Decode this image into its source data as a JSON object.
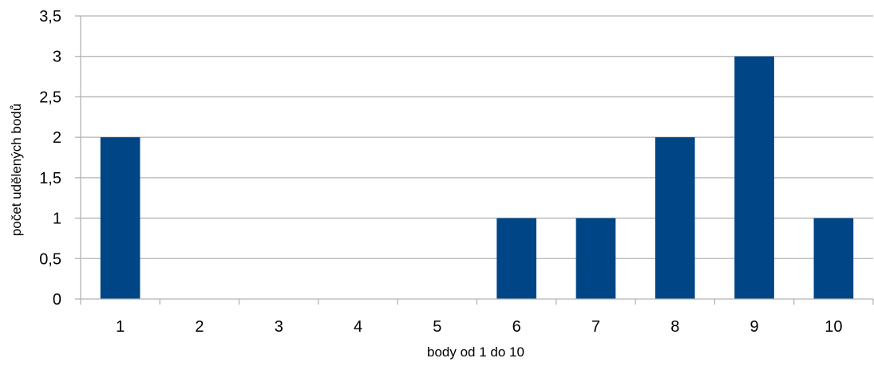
{
  "chart_data": {
    "type": "bar",
    "categories": [
      "1",
      "2",
      "3",
      "4",
      "5",
      "6",
      "7",
      "8",
      "9",
      "10"
    ],
    "values": [
      2,
      0,
      0,
      0,
      0,
      1,
      1,
      2,
      3,
      1
    ],
    "y_ticks": [
      "0",
      "0,5",
      "1",
      "1,5",
      "2",
      "2,5",
      "3",
      "3,5"
    ],
    "xlabel": "body od 1 do 10",
    "ylabel": "počet udělených bodů",
    "ylim": [
      0,
      3.5
    ],
    "grid": true,
    "bar_color": "#004586",
    "grid_color": "#b3b3b3"
  }
}
